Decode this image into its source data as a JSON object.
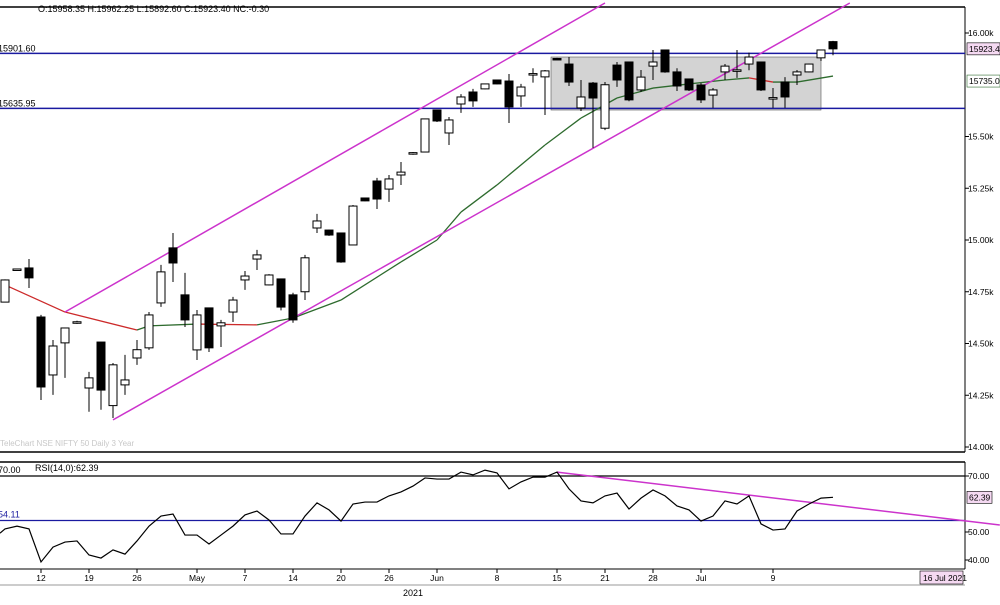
{
  "header": {
    "ohlc": "O:15958.35  H:15962.25  L:15892.60  C:15923.40  NC:-0.30"
  },
  "watermark": "TeleChart NSE NIFTY 50 Daily 3 Year",
  "colors": {
    "up_body": "#ffffff",
    "down_body": "#000000",
    "trendline": "#cc33cc",
    "level": "#1a1aa0",
    "ma_up": "#2e6b2e",
    "ma_down": "#cc2a2a",
    "range_box": "#d3d3d3",
    "tag_pink": "#f5d9f2"
  },
  "chart_data": [
    {
      "type": "candlestick",
      "y_ticks": [
        {
          "value": 16000,
          "label": "16.00k"
        },
        {
          "value": 15500,
          "label": "15.50k"
        },
        {
          "value": 15250,
          "label": "15.25k"
        },
        {
          "value": 15000,
          "label": "15.00k"
        },
        {
          "value": 14750,
          "label": "14.75k"
        },
        {
          "value": 14500,
          "label": "14.50k"
        },
        {
          "value": 14250,
          "label": "14.25k"
        },
        {
          "value": 14000,
          "label": "14.00k"
        }
      ],
      "ylim": [
        14000,
        16000
      ],
      "x_ticks": [
        {
          "index": 3,
          "label": "12"
        },
        {
          "index": 7,
          "label": "19"
        },
        {
          "index": 11,
          "label": "26"
        },
        {
          "index": 16,
          "label": "May"
        },
        {
          "index": 20,
          "label": "7"
        },
        {
          "index": 24,
          "label": "14"
        },
        {
          "index": 28,
          "label": "20"
        },
        {
          "index": 32,
          "label": "26"
        },
        {
          "index": 36,
          "label": "Jun"
        },
        {
          "index": 41,
          "label": "8"
        },
        {
          "index": 46,
          "label": "15"
        },
        {
          "index": 50,
          "label": "21"
        },
        {
          "index": 54,
          "label": "28"
        },
        {
          "index": 58,
          "label": "Jul"
        },
        {
          "index": 64,
          "label": "9"
        }
      ],
      "year_label": "2021",
      "last_date_label": "16 Jul 2021",
      "candles": [
        [
          14700,
          14810,
          14700,
          14807
        ],
        [
          14860,
          14862,
          14858,
          14860
        ],
        [
          14865,
          14908,
          14768,
          14817
        ],
        [
          14628,
          14638,
          14227,
          14290
        ],
        [
          14348,
          14517,
          14252,
          14488
        ],
        [
          14503,
          14575,
          14334,
          14575
        ],
        [
          14598,
          14610,
          14595,
          14605
        ],
        [
          14285,
          14363,
          14170,
          14334
        ],
        [
          14507,
          14507,
          14180,
          14275
        ],
        [
          14200,
          14406,
          14140,
          14397
        ],
        [
          14300,
          14445,
          14252,
          14324
        ],
        [
          14430,
          14517,
          14397,
          14470
        ],
        [
          14479,
          14652,
          14469,
          14638
        ],
        [
          14696,
          14880,
          14677,
          14846
        ],
        [
          14962,
          15034,
          14797,
          14889
        ],
        [
          14735,
          14841,
          14580,
          14614
        ],
        [
          14469,
          14662,
          14420,
          14638
        ],
        [
          14672,
          14672,
          14459,
          14479
        ],
        [
          14585,
          14614,
          14483,
          14600
        ],
        [
          14652,
          14725,
          14604,
          14710
        ],
        [
          14807,
          14850,
          14759,
          14826
        ],
        [
          14908,
          14952,
          14855,
          14928
        ],
        [
          14783,
          14835,
          14780,
          14831
        ],
        [
          14812,
          14812,
          14660,
          14676
        ],
        [
          14735,
          14745,
          14600,
          14614
        ],
        [
          14750,
          14928,
          14710,
          14914
        ],
        [
          15058,
          15126,
          15034,
          15092
        ],
        [
          15048,
          15050,
          15020,
          15024
        ],
        [
          15034,
          15036,
          14890,
          14894
        ],
        [
          14976,
          15169,
          14976,
          15164
        ],
        [
          15203,
          15205,
          15187,
          15189
        ],
        [
          15285,
          15300,
          15150,
          15198
        ],
        [
          15246,
          15314,
          15184,
          15295
        ],
        [
          15314,
          15377,
          15266,
          15328
        ],
        [
          15415,
          15425,
          15412,
          15422
        ],
        [
          15425,
          15585,
          15423,
          15585
        ],
        [
          15628,
          15630,
          15570,
          15575
        ],
        [
          15517,
          15594,
          15459,
          15580
        ],
        [
          15657,
          15705,
          15614,
          15691
        ],
        [
          15715,
          15730,
          15643,
          15672
        ],
        [
          15730,
          15756,
          15728,
          15754
        ],
        [
          15773,
          15775,
          15752,
          15754
        ],
        [
          15768,
          15802,
          15565,
          15643
        ],
        [
          15696,
          15754,
          15643,
          15739
        ],
        [
          15800,
          15830,
          15760,
          15804
        ],
        [
          15788,
          15821,
          15604,
          15817
        ],
        [
          15877,
          15880,
          15872,
          15875
        ],
        [
          15850,
          15884,
          15744,
          15763
        ],
        [
          15638,
          15773,
          15623,
          15691
        ],
        [
          15758,
          15763,
          15445,
          15686
        ],
        [
          15540,
          15763,
          15531,
          15750
        ],
        [
          15845,
          15860,
          15740,
          15773
        ],
        [
          15860,
          15862,
          15670,
          15677
        ],
        [
          15725,
          15821,
          15715,
          15787
        ],
        [
          15840,
          15918,
          15773,
          15860
        ],
        [
          15918,
          15920,
          15808,
          15812
        ],
        [
          15812,
          15830,
          15720,
          15744
        ],
        [
          15778,
          15780,
          15720,
          15725
        ],
        [
          15749,
          15758,
          15662,
          15677
        ],
        [
          15700,
          15734,
          15638,
          15725
        ],
        [
          15812,
          15850,
          15773,
          15840
        ],
        [
          15820,
          15918,
          15783,
          15822
        ],
        [
          15850,
          15905,
          15820,
          15884
        ],
        [
          15860,
          15862,
          15720,
          15725
        ],
        [
          15686,
          15734,
          15638,
          15688
        ],
        [
          15763,
          15787,
          15638,
          15691
        ],
        [
          15797,
          15821,
          15749,
          15812
        ],
        [
          15812,
          15852,
          15810,
          15850
        ],
        [
          15880,
          15918,
          15865,
          15918
        ],
        [
          15958.35,
          15962.25,
          15892.6,
          15923.4
        ]
      ],
      "ohlc_order": [
        "open",
        "high",
        "low",
        "close"
      ],
      "moving_average": {
        "points": [
          [
            0,
            14783
          ],
          [
            5,
            14652
          ],
          [
            11,
            14565
          ],
          [
            12,
            14585
          ],
          [
            16,
            14594
          ],
          [
            21,
            14590
          ],
          [
            24,
            14623
          ],
          [
            28,
            14710
          ],
          [
            33,
            14894
          ],
          [
            36,
            15000
          ],
          [
            38,
            15135
          ],
          [
            41,
            15266
          ],
          [
            45,
            15459
          ],
          [
            48,
            15589
          ],
          [
            51,
            15686
          ],
          [
            54,
            15734
          ],
          [
            57,
            15754
          ],
          [
            60,
            15773
          ],
          [
            62,
            15783
          ],
          [
            64,
            15763
          ],
          [
            66,
            15763
          ],
          [
            69,
            15792
          ]
        ],
        "last_label": "15735.0"
      },
      "horizontal_levels": [
        {
          "value": 15901.6,
          "label": "15901.60"
        },
        {
          "value": 15635.95,
          "label": "15635.95"
        }
      ],
      "last_price_label": "15923.4",
      "range_box": {
        "from_index": 46,
        "to_index": 68,
        "top": 15884,
        "bottom": 15628
      },
      "trendlines": [
        {
          "from": [
            5,
            14652
          ],
          "to": [
            50,
            16145
          ]
        },
        {
          "from": [
            9,
            14131
          ],
          "to": [
            70.4,
            16145
          ]
        }
      ]
    },
    {
      "type": "line",
      "title": "RSI(14,0):62.39",
      "y_ticks": [
        {
          "value": 70,
          "label": "70.00"
        },
        {
          "value": 50,
          "label": "50.00"
        },
        {
          "value": 40,
          "label": "40.00"
        }
      ],
      "ylim": [
        40,
        70
      ],
      "values": [
        51.1,
        52.1,
        51.1,
        39.3,
        44.6,
        46.4,
        46.8,
        41.8,
        40.7,
        43.6,
        42.1,
        46.8,
        52.1,
        55.7,
        56.4,
        48.9,
        48.9,
        45.7,
        48.9,
        52.1,
        56.1,
        57.5,
        54.3,
        49.3,
        49.3,
        55.7,
        60.4,
        57.9,
        53.9,
        60.0,
        60.7,
        60.7,
        62.9,
        64.3,
        66.4,
        69.3,
        68.9,
        68.9,
        71.4,
        70.4,
        72.1,
        71.1,
        65.4,
        67.9,
        69.6,
        69.6,
        71.4,
        65.4,
        61.1,
        60.4,
        62.9,
        63.9,
        58.2,
        62.1,
        65.0,
        62.9,
        59.3,
        57.9,
        53.9,
        55.7,
        61.1,
        60.0,
        62.9,
        52.9,
        50.7,
        51.1,
        57.5,
        60.0,
        62.1,
        62.39
      ],
      "levels": [
        {
          "value": 70,
          "label": "70.00"
        },
        {
          "value": 54.11,
          "label": "54.11"
        }
      ],
      "last_label": "62.39",
      "trendline": {
        "from": [
          46,
          71.4
        ],
        "to": [
          82.9,
          52.5
        ]
      }
    }
  ]
}
